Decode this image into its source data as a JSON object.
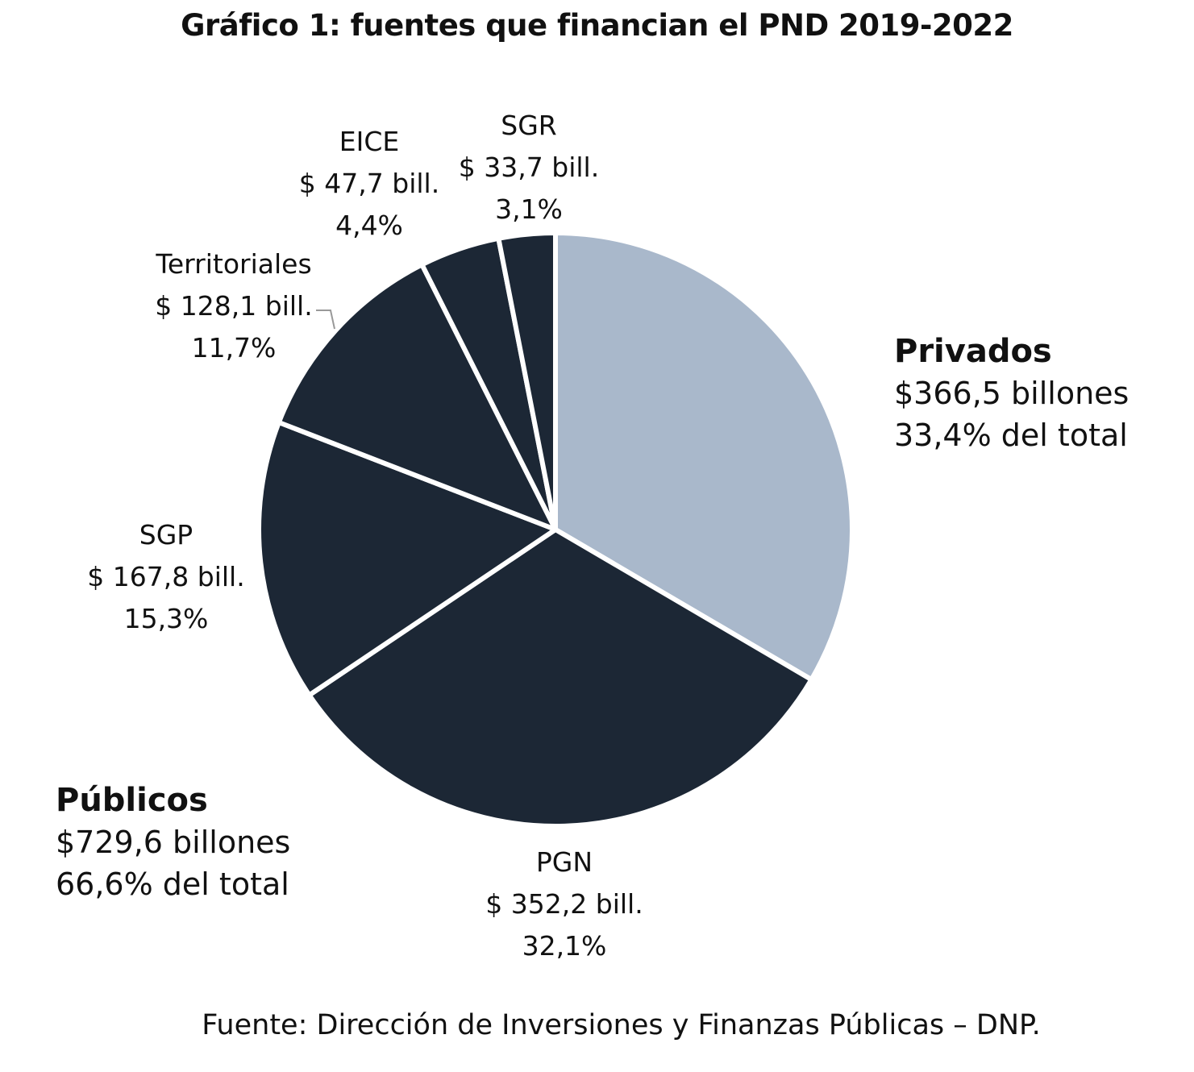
{
  "chart_data": {
    "type": "pie",
    "title": "Gráfico 1: fuentes que financian el PND 2019-2022",
    "slices": [
      {
        "name": "Privados",
        "value": 366.5,
        "amount_label": "$366,5 billones",
        "pct_label": "33,4% del total",
        "color": "#a9b8cb"
      },
      {
        "name": "PGN",
        "value": 352.2,
        "amount_label": "$ 352,2 bill.",
        "pct_label": "32,1%",
        "color": "#1c2735"
      },
      {
        "name": "SGP",
        "value": 167.8,
        "amount_label": "$ 167,8 bill.",
        "pct_label": "15,3%",
        "color": "#1c2735"
      },
      {
        "name": "Territoriales",
        "value": 128.1,
        "amount_label": "$ 128,1 bill.",
        "pct_label": "11,7%",
        "color": "#1c2735"
      },
      {
        "name": "EICE",
        "value": 47.7,
        "amount_label": "$ 47,7 bill.",
        "pct_label": "4,4%",
        "color": "#1c2735"
      },
      {
        "name": "SGR",
        "value": 33.7,
        "amount_label": "$ 33,7 bill.",
        "pct_label": "3,1%",
        "color": "#1c2735"
      }
    ],
    "groups": {
      "privados": {
        "name": "Privados",
        "amount": "$366,5 billones",
        "pct": "33,4% del total"
      },
      "publicos": {
        "name": "Públicos",
        "amount": "$729,6 billones",
        "pct": "66,6% del total"
      }
    }
  },
  "source": "Fuente: Dirección de Inversiones y Finanzas Públicas – DNP."
}
